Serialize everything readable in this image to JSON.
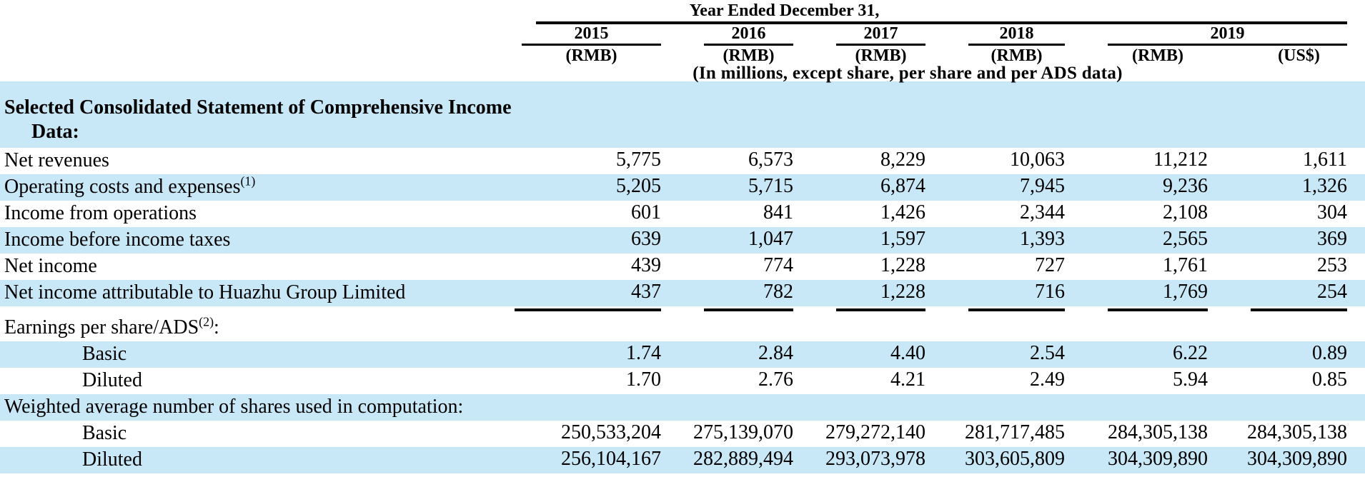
{
  "colors": {
    "band": "#C8E8F8",
    "line": "#000000",
    "text": "#000000"
  },
  "table": {
    "header": {
      "group_title": "Year Ended December 31,",
      "years": [
        "2015",
        "2016",
        "2017",
        "2018",
        "2019"
      ],
      "currency_labels": [
        "(RMB)",
        "(RMB)",
        "(RMB)",
        "(RMB)",
        "(RMB)",
        "(US$)"
      ],
      "units_note": "(In millions, except share, per share and per ADS data)"
    },
    "rows": [
      {
        "type": "section",
        "band": true,
        "lines": [
          "Selected Consolidated Statement of Comprehensive Income",
          "Data:"
        ]
      },
      {
        "type": "data",
        "band": false,
        "label": "Net revenues",
        "values": [
          "5,775",
          "6,573",
          "8,229",
          "10,063",
          "11,212",
          "1,611"
        ]
      },
      {
        "type": "data",
        "band": true,
        "label": "Operating costs and expenses",
        "sup": "(1)",
        "values": [
          "5,205",
          "5,715",
          "6,874",
          "7,945",
          "9,236",
          "1,326"
        ]
      },
      {
        "type": "data",
        "band": false,
        "label": "Income from operations",
        "values": [
          "601",
          "841",
          "1,426",
          "2,344",
          "2,108",
          "304"
        ]
      },
      {
        "type": "data",
        "band": true,
        "label": "Income before income taxes",
        "values": [
          "639",
          "1,047",
          "1,597",
          "1,393",
          "2,565",
          "369"
        ]
      },
      {
        "type": "data",
        "band": false,
        "label": "Net income",
        "values": [
          "439",
          "774",
          "1,228",
          "727",
          "1,761",
          "253"
        ]
      },
      {
        "type": "data",
        "band": true,
        "label": "Net income attributable to Huazhu Group Limited",
        "rule_below": true,
        "values": [
          "437",
          "782",
          "1,228",
          "716",
          "1,769",
          "254"
        ]
      },
      {
        "type": "label",
        "band": false,
        "label": "Earnings per share/ADS",
        "sup": "(2)",
        "suffix": ":"
      },
      {
        "type": "data",
        "band": true,
        "indent": true,
        "label": "Basic",
        "values": [
          "1.74",
          "2.84",
          "4.40",
          "2.54",
          "6.22",
          "0.89"
        ]
      },
      {
        "type": "data",
        "band": false,
        "indent": true,
        "label": "Diluted",
        "values": [
          "1.70",
          "2.76",
          "4.21",
          "2.49",
          "5.94",
          "0.85"
        ]
      },
      {
        "type": "label",
        "band": true,
        "label": "Weighted average number of shares used in computation:"
      },
      {
        "type": "data",
        "band": false,
        "indent": true,
        "label": "Basic",
        "values": [
          "250,533,204",
          "275,139,070",
          "279,272,140",
          "281,717,485",
          "284,305,138",
          "284,305,138"
        ]
      },
      {
        "type": "data",
        "band": true,
        "indent": true,
        "label": "Diluted",
        "values": [
          "256,104,167",
          "282,889,494",
          "293,073,978",
          "303,605,809",
          "304,309,890",
          "304,309,890"
        ]
      }
    ]
  }
}
